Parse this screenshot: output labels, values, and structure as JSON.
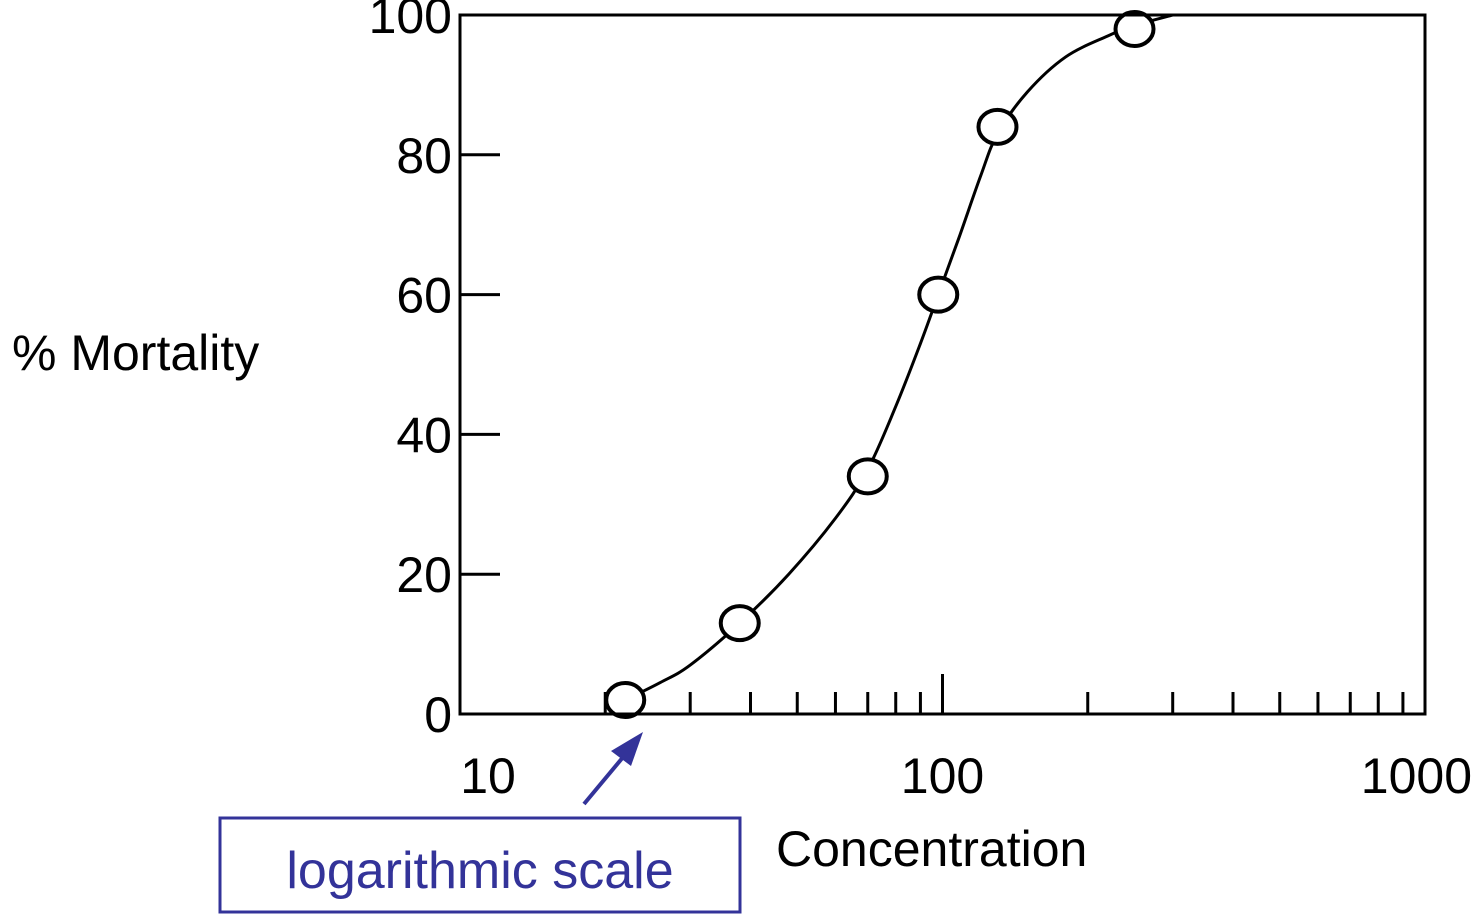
{
  "chart_data": {
    "type": "scatter",
    "title": "",
    "xlabel": "Concentration",
    "ylabel": "% Mortality",
    "x_scale": "log",
    "xlim": [
      10,
      1000
    ],
    "ylim": [
      0,
      100
    ],
    "x_tick_labels": [
      "10",
      "100",
      "1000"
    ],
    "x_tick_values": [
      10,
      100,
      1000
    ],
    "y_tick_labels": [
      "0",
      "20",
      "40",
      "60",
      "80",
      "100"
    ],
    "y_tick_values": [
      0,
      20,
      40,
      60,
      80,
      100
    ],
    "grid": false,
    "points": {
      "x": [
        22,
        38,
        70,
        98,
        130,
        250
      ],
      "y": [
        2,
        13,
        34,
        60,
        84,
        98
      ]
    },
    "fit_curve": {
      "x": [
        22,
        26,
        30,
        38,
        48,
        60,
        70,
        80,
        90,
        98,
        108,
        120,
        130,
        150,
        180,
        220,
        250,
        300
      ],
      "y": [
        2,
        4.5,
        7,
        13,
        20,
        28,
        35,
        44,
        53,
        60,
        68,
        77,
        83,
        89,
        94,
        97,
        98.5,
        100
      ]
    },
    "annotation": {
      "text": "logarithmic scale",
      "color": "#333399",
      "points_to_x": 22
    }
  }
}
